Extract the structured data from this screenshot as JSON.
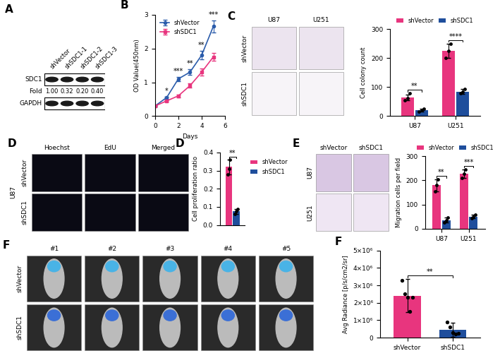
{
  "western_blot": {
    "panel_label": "A",
    "lanes": [
      "shVector",
      "shSDC1-1",
      "shSDC1-2",
      "shSDC1-3"
    ],
    "band_rows": [
      "SDC1",
      "GAPDH"
    ],
    "fold_label": "Fold",
    "fold": [
      "1.00",
      "0.32",
      "0.20",
      "0.40"
    ]
  },
  "images": [
    {
      "panel_label": "C",
      "columns": [
        "U87",
        "U251"
      ],
      "rows": [
        "shVector",
        "shSDC1"
      ]
    },
    {
      "panel_label": "D",
      "side_label": "U87",
      "columns": [
        "Hoechst",
        "EdU",
        "Merged"
      ],
      "rows": [
        "shVector",
        "shSDC1"
      ]
    },
    {
      "panel_label": "E",
      "columns": [
        "shVector",
        "shSDC1"
      ],
      "rows": [
        "U87",
        "U251"
      ]
    },
    {
      "panel_label": "F",
      "columns": [
        "#1",
        "#2",
        "#3",
        "#4",
        "#5"
      ],
      "rows": [
        "shVector",
        "shSDC1"
      ]
    }
  ],
  "chart_data": [
    {
      "panel_label": "B",
      "type": "line",
      "x": [
        0,
        1,
        2,
        3,
        4,
        5
      ],
      "x_label": "Days",
      "y_label": "OD Value(450nm)",
      "xlim": [
        0,
        6
      ],
      "xticks": [
        0,
        2,
        4,
        6
      ],
      "ylim": [
        0,
        3
      ],
      "yticks": [
        0,
        1,
        2,
        3
      ],
      "legend": "upper left",
      "series": [
        {
          "name": "shVector",
          "color": "#2b5cab",
          "marker": "o",
          "values": [
            0.3,
            0.55,
            1.1,
            1.3,
            1.8,
            2.65
          ],
          "errors": [
            0.02,
            0.03,
            0.06,
            0.08,
            0.12,
            0.18
          ]
        },
        {
          "name": "shSDC1",
          "color": "#e8357e",
          "marker": "s",
          "values": [
            0.3,
            0.45,
            0.6,
            0.9,
            1.3,
            1.75
          ],
          "errors": [
            0.02,
            0.02,
            0.04,
            0.06,
            0.1,
            0.12
          ]
        }
      ],
      "annotations": [
        null,
        "*",
        "***",
        "**",
        "**",
        "***"
      ]
    },
    {
      "panel_label": "C",
      "type": "bar",
      "categories": [
        "U87",
        "U251"
      ],
      "y_label": "Cell colony count",
      "ylim": [
        0,
        300
      ],
      "yticks": [
        0,
        100,
        200,
        300
      ],
      "legend": "top",
      "series": [
        {
          "name": "shVector",
          "color": "#e8357e",
          "values": [
            65,
            225
          ],
          "errors": [
            10,
            25
          ],
          "points": [
            [
              55,
              62,
              78
            ],
            [
              200,
              225,
              250
            ]
          ]
        },
        {
          "name": "shSDC1",
          "color": "#1f4e9c",
          "values": [
            20,
            85
          ],
          "errors": [
            5,
            8
          ],
          "points": [
            [
              15,
              20,
              25
            ],
            [
              78,
              85,
              93
            ]
          ]
        }
      ],
      "annotations": [
        "**",
        "****"
      ]
    },
    {
      "panel_label": "D",
      "type": "bar",
      "categories": [
        null
      ],
      "y_label": "Cell proliferation ratio",
      "ylim": [
        0,
        0.4
      ],
      "yticks": [
        {
          "value": 0,
          "label": "0.0"
        },
        0.1,
        0.2,
        0.3,
        0.4
      ],
      "legend": "right",
      "series": [
        {
          "name": "shVector",
          "color": "#e8357e",
          "values": [
            0.32
          ],
          "errors": [
            0.04
          ],
          "points": [
            [
              0.28,
              0.31,
              0.36
            ]
          ]
        },
        {
          "name": "shSDC1",
          "color": "#1f4e9c",
          "values": [
            0.075
          ],
          "errors": [
            0.015
          ],
          "points": [
            [
              0.06,
              0.075,
              0.09
            ]
          ]
        }
      ],
      "annotations": [
        "**"
      ]
    },
    {
      "panel_label": "E",
      "type": "bar",
      "categories": [
        "U87",
        "U251"
      ],
      "y_label": "Migration cells per field",
      "ylim": [
        0,
        300
      ],
      "yticks": [
        0,
        100,
        200,
        300
      ],
      "legend": "top",
      "series": [
        {
          "name": "shVector",
          "color": "#e8357e",
          "values": [
            180,
            228
          ],
          "errors": [
            25,
            18
          ],
          "points": [
            [
              155,
              180,
              205
            ],
            [
              210,
              228,
              246
            ]
          ]
        },
        {
          "name": "shSDC1",
          "color": "#1f4e9c",
          "values": [
            35,
            50
          ],
          "errors": [
            10,
            8
          ],
          "points": [
            [
              25,
              35,
              45
            ],
            [
              42,
              50,
              58
            ]
          ]
        }
      ],
      "annotations": [
        "**",
        "***"
      ]
    },
    {
      "panel_label": "F",
      "type": "bar",
      "categories": [
        "shVector",
        "shSDC1"
      ],
      "y_label": "Avg Radiance [p/s/cm2/sr]",
      "ylim": [
        0,
        5000000
      ],
      "yticks": [
        0,
        {
          "value": 1000000,
          "label": "1×10⁶"
        },
        {
          "value": 2000000,
          "label": "2×10⁶"
        },
        {
          "value": 3000000,
          "label": "3×10⁶"
        },
        {
          "value": 4000000,
          "label": "4×10⁶"
        },
        {
          "value": 5000000,
          "label": "5×10⁶"
        }
      ],
      "values": [
        2400000,
        450000
      ],
      "errors": [
        950000,
        400000
      ],
      "colors": [
        "#e8357e",
        "#1f4e9c"
      ],
      "points": [
        [
          3300000,
          2500000,
          2300000,
          1500000,
          2300000
        ],
        [
          900000,
          600000,
          300000,
          200000,
          250000
        ]
      ],
      "annotation": "**"
    }
  ]
}
